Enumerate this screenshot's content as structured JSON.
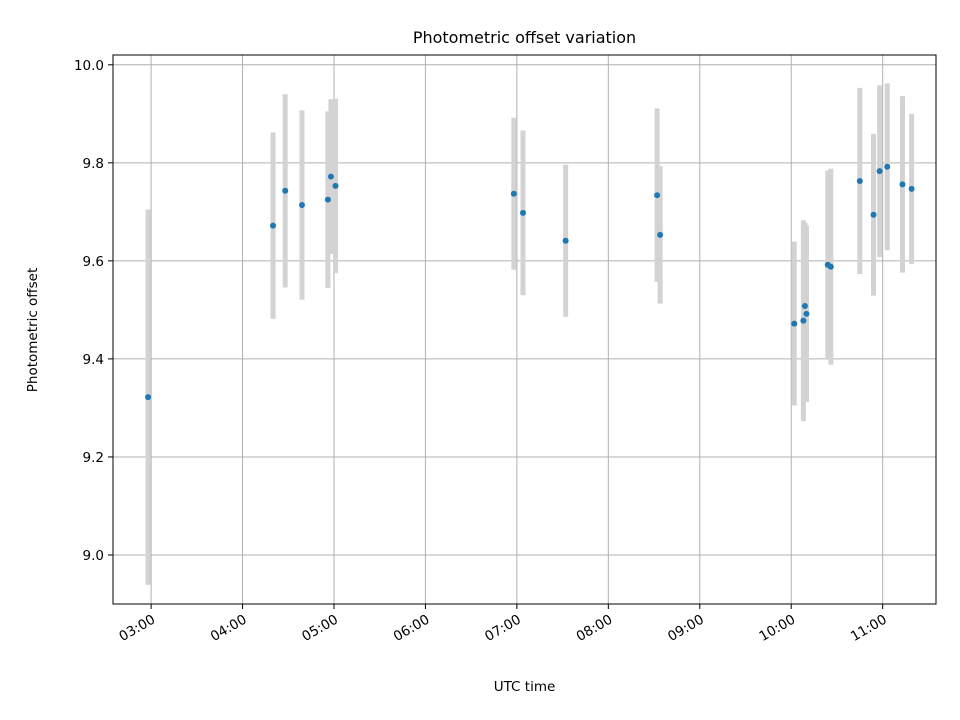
{
  "chart_data": {
    "type": "scatter",
    "title": "Photometric offset variation",
    "xlabel": "UTC time",
    "ylabel": "Photometric offset",
    "xlim": [
      "02:35",
      "11:35"
    ],
    "ylim": [
      8.9,
      10.02
    ],
    "x_ticks": [
      "03:00",
      "04:00",
      "05:00",
      "06:00",
      "07:00",
      "08:00",
      "09:00",
      "10:00",
      "11:00"
    ],
    "y_ticks": [
      "9.0",
      "9.2",
      "9.4",
      "9.6",
      "9.8",
      "10.0"
    ],
    "grid": true,
    "colors": {
      "points": "#1f77b4",
      "errorbars": "#d3d3d3",
      "grid": "#b0b0b0"
    },
    "points": [
      {
        "x": "02:58",
        "y": 9.322,
        "err": 0.383
      },
      {
        "x": "04:20",
        "y": 9.672,
        "err": 0.19
      },
      {
        "x": "04:28",
        "y": 9.743,
        "err": 0.197
      },
      {
        "x": "04:39",
        "y": 9.714,
        "err": 0.193
      },
      {
        "x": "04:56",
        "y": 9.725,
        "err": 0.18
      },
      {
        "x": "04:58",
        "y": 9.772,
        "err": 0.158
      },
      {
        "x": "05:01",
        "y": 9.753,
        "err": 0.178
      },
      {
        "x": "06:58",
        "y": 9.737,
        "err": 0.155
      },
      {
        "x": "07:04",
        "y": 9.698,
        "err": 0.168
      },
      {
        "x": "07:32",
        "y": 9.641,
        "err": 0.155
      },
      {
        "x": "08:32",
        "y": 9.734,
        "err": 0.177
      },
      {
        "x": "08:34",
        "y": 9.653,
        "err": 0.14
      },
      {
        "x": "10:02",
        "y": 9.472,
        "err": 0.167
      },
      {
        "x": "10:08",
        "y": 9.478,
        "err": 0.205
      },
      {
        "x": "10:09",
        "y": 9.508,
        "err": 0.17
      },
      {
        "x": "10:10",
        "y": 9.492,
        "err": 0.18
      },
      {
        "x": "10:24",
        "y": 9.592,
        "err": 0.192
      },
      {
        "x": "10:26",
        "y": 9.588,
        "err": 0.2
      },
      {
        "x": "10:45",
        "y": 9.763,
        "err": 0.19
      },
      {
        "x": "10:54",
        "y": 9.694,
        "err": 0.165
      },
      {
        "x": "10:58",
        "y": 9.783,
        "err": 0.175
      },
      {
        "x": "11:03",
        "y": 9.792,
        "err": 0.17
      },
      {
        "x": "11:13",
        "y": 9.756,
        "err": 0.18
      },
      {
        "x": "11:19",
        "y": 9.747,
        "err": 0.153
      }
    ]
  }
}
